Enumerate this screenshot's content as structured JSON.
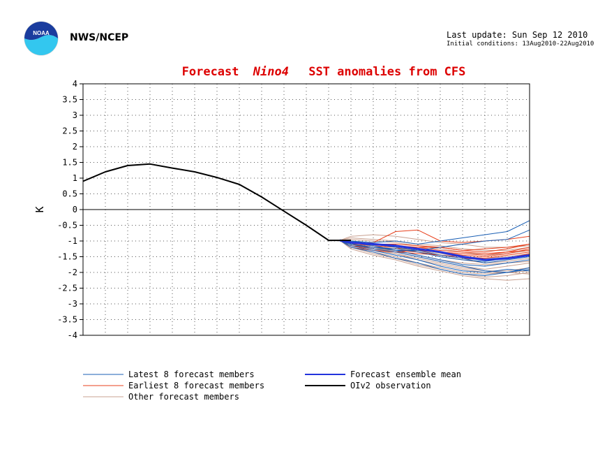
{
  "header": {
    "org": "NWS/NCEP",
    "last_update": "Last update: Sun Sep 12 2010",
    "initial_conditions": "Initial conditions: 13Aug2010-22Aug2010",
    "logo_text": "NOAA"
  },
  "colors": {
    "latest": "#1a5fb4",
    "earliest": "#e8401c",
    "other": "#c8a090",
    "mean": "#2233dd",
    "observation": "#000000",
    "title": "#dd0000"
  },
  "chart_data": {
    "type": "line",
    "title_parts": [
      "Forecast",
      "Nino4",
      "SST anomalies from CFS"
    ],
    "xlabel": "",
    "ylabel": "K",
    "ylim": [
      -4,
      4
    ],
    "yticks": [
      "4",
      "3.5",
      "3",
      "2.5",
      "2",
      "1.5",
      "1",
      "0.5",
      "0",
      "-0.5",
      "-1",
      "-1.5",
      "-2",
      "-2.5",
      "-3",
      "-3.5",
      "-4"
    ],
    "x_months": 20,
    "grid": true,
    "legend": [
      {
        "key": "latest",
        "label": "Latest 8 forecast members"
      },
      {
        "key": "earliest",
        "label": "Earliest 8 forecast members"
      },
      {
        "key": "other",
        "label": "Other forecast members"
      },
      {
        "key": "mean",
        "label": "Forecast ensemble mean"
      },
      {
        "key": "observation",
        "label": "OIv2 observation"
      }
    ],
    "observation": {
      "x": [
        0,
        1,
        2,
        3,
        4,
        5,
        6,
        7,
        8,
        9,
        10,
        11,
        12
      ],
      "y": [
        0.9,
        1.2,
        1.4,
        1.45,
        1.32,
        1.2,
        1.02,
        0.8,
        0.4,
        -0.05,
        -0.5,
        -0.98,
        -0.98
      ]
    },
    "forecast_x": [
      11.5,
      12,
      13,
      14,
      15,
      16,
      17,
      18,
      19,
      20
    ],
    "ensemble_mean": [
      -0.98,
      -1.05,
      -1.1,
      -1.15,
      -1.25,
      -1.35,
      -1.5,
      -1.6,
      -1.55,
      -1.45
    ],
    "latest_members": [
      [
        -0.98,
        -1.0,
        -1.05,
        -1.0,
        -1.1,
        -1.0,
        -0.9,
        -0.8,
        -0.7,
        -0.35
      ],
      [
        -0.98,
        -1.1,
        -1.2,
        -1.3,
        -1.3,
        -1.2,
        -1.1,
        -1.0,
        -0.95,
        -0.65
      ],
      [
        -0.98,
        -1.15,
        -1.3,
        -1.45,
        -1.6,
        -1.8,
        -1.95,
        -2.0,
        -1.9,
        -1.95
      ],
      [
        -0.98,
        -1.2,
        -1.35,
        -1.55,
        -1.7,
        -1.9,
        -2.05,
        -2.1,
        -2.0,
        -1.9
      ],
      [
        -0.98,
        -1.1,
        -1.25,
        -1.35,
        -1.5,
        -1.65,
        -1.8,
        -1.95,
        -2.0,
        -1.85
      ],
      [
        -0.98,
        -1.05,
        -1.15,
        -1.3,
        -1.45,
        -1.6,
        -1.75,
        -1.8,
        -1.7,
        -1.6
      ],
      [
        -0.98,
        -1.1,
        -1.2,
        -1.25,
        -1.35,
        -1.5,
        -1.6,
        -1.65,
        -1.55,
        -1.45
      ],
      [
        -0.98,
        -1.0,
        -1.1,
        -1.2,
        -1.3,
        -1.45,
        -1.55,
        -1.7,
        -1.6,
        -1.5
      ]
    ],
    "earliest_members": [
      [
        -0.98,
        -1.1,
        -1.05,
        -0.7,
        -0.65,
        -1.0,
        -1.05,
        -1.0,
        -0.95,
        -0.85
      ],
      [
        -0.98,
        -1.1,
        -1.2,
        -1.25,
        -1.2,
        -1.2,
        -1.3,
        -1.35,
        -1.25,
        -1.1
      ],
      [
        -0.98,
        -1.15,
        -1.25,
        -1.35,
        -1.3,
        -1.35,
        -1.45,
        -1.5,
        -1.4,
        -1.25
      ],
      [
        -0.98,
        -1.05,
        -1.1,
        -1.15,
        -1.2,
        -1.3,
        -1.35,
        -1.4,
        -1.35,
        -1.3
      ],
      [
        -0.98,
        -1.2,
        -1.3,
        -1.35,
        -1.4,
        -1.45,
        -1.55,
        -1.6,
        -1.55,
        -1.4
      ],
      [
        -0.98,
        -1.1,
        -1.15,
        -1.2,
        -1.3,
        -1.35,
        -1.4,
        -1.45,
        -1.35,
        -1.2
      ],
      [
        -0.98,
        -1.05,
        -1.1,
        -1.1,
        -1.15,
        -1.2,
        -1.3,
        -1.25,
        -1.2,
        -1.1
      ],
      [
        -0.98,
        -1.15,
        -1.2,
        -1.3,
        -1.35,
        -1.45,
        -1.5,
        -1.55,
        -1.45,
        -1.35
      ]
    ],
    "other_members": [
      [
        -0.98,
        -0.85,
        -0.8,
        -0.85,
        -0.95,
        -1.05,
        -1.1,
        -1.2,
        -1.2,
        -1.15
      ],
      [
        -0.98,
        -1.25,
        -1.45,
        -1.6,
        -1.8,
        -1.95,
        -2.1,
        -2.2,
        -2.25,
        -2.2
      ],
      [
        -0.98,
        -1.2,
        -1.35,
        -1.5,
        -1.7,
        -1.85,
        -2.0,
        -2.05,
        -2.0,
        -2.05
      ],
      [
        -0.98,
        -1.1,
        -1.2,
        -1.35,
        -1.5,
        -1.65,
        -1.8,
        -1.9,
        -1.8,
        -1.7
      ],
      [
        -0.98,
        -1.0,
        -1.1,
        -1.2,
        -1.35,
        -1.5,
        -1.6,
        -1.7,
        -1.65,
        -1.55
      ],
      [
        -0.98,
        -1.15,
        -1.3,
        -1.4,
        -1.55,
        -1.7,
        -1.85,
        -1.95,
        -1.95,
        -1.85
      ],
      [
        -0.98,
        -0.95,
        -1.0,
        -1.05,
        -1.15,
        -1.25,
        -1.35,
        -1.45,
        -1.4,
        -1.3
      ],
      [
        -0.98,
        -1.2,
        -1.4,
        -1.55,
        -1.75,
        -1.9,
        -2.05,
        -2.15,
        -2.1,
        -2.0
      ],
      [
        -0.98,
        -1.05,
        -1.15,
        -1.25,
        -1.3,
        -1.4,
        -1.5,
        -1.55,
        -1.5,
        -1.4
      ],
      [
        -0.98,
        -0.9,
        -0.95,
        -1.0,
        -1.1,
        -1.15,
        -1.25,
        -1.3,
        -1.3,
        -1.2
      ],
      [
        -0.98,
        -1.1,
        -1.25,
        -1.4,
        -1.6,
        -1.75,
        -1.9,
        -2.0,
        -2.0,
        -1.95
      ],
      [
        -0.98,
        -1.15,
        -1.25,
        -1.3,
        -1.45,
        -1.6,
        -1.7,
        -1.75,
        -1.7,
        -1.65
      ]
    ]
  }
}
